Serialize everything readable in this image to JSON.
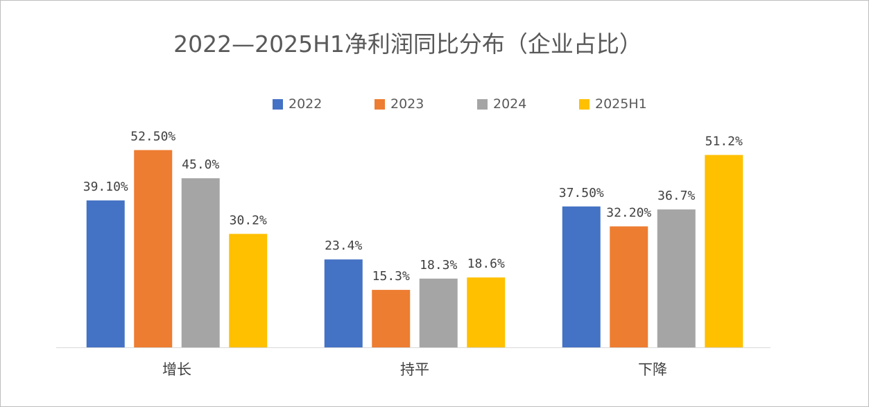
{
  "chart_data": {
    "type": "bar",
    "title": "2022—2025H1净利润同比分布（企业占比）",
    "categories": [
      "增长",
      "持平",
      "下降"
    ],
    "series": [
      {
        "name": "2022",
        "color": "#4472C4",
        "values": [
          39.1,
          23.4,
          37.5
        ],
        "labels": [
          "39.10%",
          "23.4%",
          "37.50%"
        ]
      },
      {
        "name": "2023",
        "color": "#ED7D31",
        "values": [
          52.5,
          15.3,
          32.2
        ],
        "labels": [
          "52.50%",
          "15.3%",
          "32.20%"
        ]
      },
      {
        "name": "2024",
        "color": "#A5A5A5",
        "values": [
          45.0,
          18.3,
          36.7
        ],
        "labels": [
          "45.0%",
          "18.3%",
          "36.7%"
        ]
      },
      {
        "name": "2025H1",
        "color": "#FFC000",
        "values": [
          30.2,
          18.6,
          51.2
        ],
        "labels": [
          "30.2%",
          "18.6%",
          "51.2%"
        ]
      }
    ],
    "xlabel": "",
    "ylabel": "",
    "ylim": [
      0,
      55
    ],
    "grid": false,
    "legend_position": "top"
  }
}
